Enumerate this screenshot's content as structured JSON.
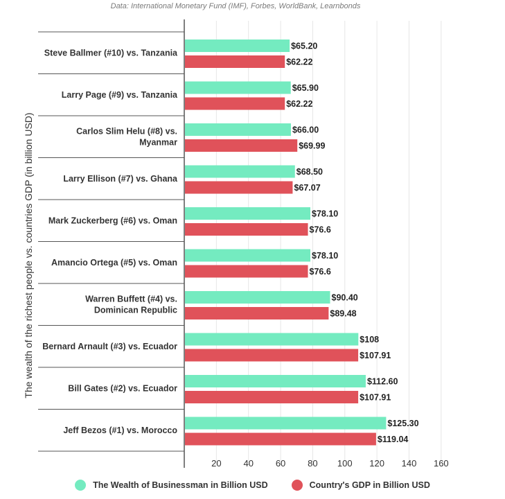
{
  "source_note": "Data: International Monetary Fund (IMF), Forbes, WorldBank, Learnbonds",
  "colors": {
    "wealth": "#74EBC0",
    "gdp": "#E0525A",
    "axis": "#555555",
    "grid": "#e6e6e6"
  },
  "chart_data": {
    "type": "bar",
    "orientation": "horizontal",
    "ylabel": "The wealth of the richest people vs. countries GDP (in billion USD)",
    "xlabel": "",
    "xlim": [
      0,
      170
    ],
    "x_ticks": [
      "20",
      "40",
      "60",
      "80",
      "100",
      "120",
      "140",
      "160"
    ],
    "grid": true,
    "legend_position": "bottom",
    "categories": [
      "Steve Ballmer (#10) vs. Tanzania",
      "Larry Page (#9) vs. Tanzania",
      "Carlos Slim Helu (#8) vs. Myanmar",
      "Larry Ellison (#7) vs. Ghana",
      "Mark Zuckerberg (#6) vs. Oman",
      "Amancio Ortega (#5) vs. Oman",
      "Warren Buffett (#4) vs. Dominican Republic",
      "Bernard Arnault (#3) vs. Ecuador",
      "Bill Gates (#2) vs. Ecuador",
      "Jeff Bezos (#1) vs. Morocco"
    ],
    "series": [
      {
        "name": "The Wealth of Businessman in Billion USD",
        "values": [
          65.2,
          65.9,
          66.0,
          68.5,
          78.1,
          78.1,
          90.4,
          108,
          112.6,
          125.3
        ],
        "labels": [
          "$65.20",
          "$65.90",
          "$66.00",
          "$68.50",
          "$78.10",
          "$78.10",
          "$90.40",
          "$108",
          "$112.60",
          "$125.30"
        ]
      },
      {
        "name": "Country's GDP in Billion USD",
        "values": [
          62.22,
          62.22,
          69.99,
          67.07,
          76.6,
          76.6,
          89.48,
          107.91,
          107.91,
          119.04
        ],
        "labels": [
          "$62.22",
          "$62.22",
          "$69.99",
          "$67.07",
          "$76.6",
          "$76.6",
          "$89.48",
          "$107.91",
          "$107.91",
          "$119.04"
        ]
      }
    ]
  }
}
